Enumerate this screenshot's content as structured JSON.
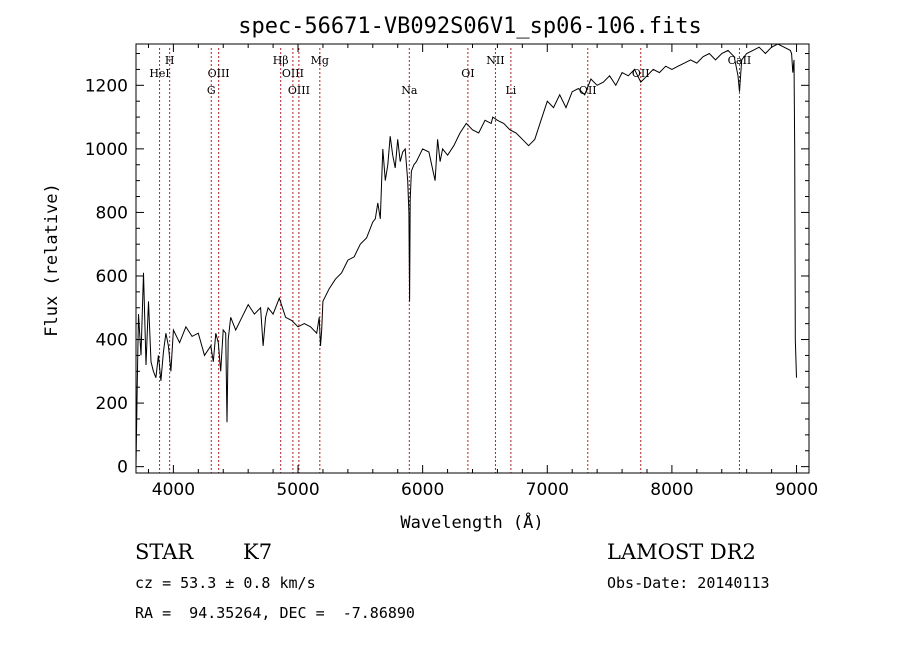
{
  "chart_data": {
    "type": "line",
    "title": "spec-56671-VB092S06V1_sp06-106.fits",
    "xlabel": "Wavelength (Å)",
    "ylabel": "Flux (relative)",
    "xlim": [
      3700,
      9100
    ],
    "ylim": [
      -20,
      1330
    ],
    "xticks": [
      4000,
      5000,
      6000,
      7000,
      8000,
      9000
    ],
    "xtick_labels": [
      "4000",
      "5000",
      "6000",
      "7000",
      "8000",
      "9000"
    ],
    "yticks": [
      0,
      200,
      400,
      600,
      800,
      1000,
      1200
    ],
    "ytick_labels": [
      "0",
      "200",
      "400",
      "600",
      "800",
      "1000",
      "1200"
    ],
    "grid": false,
    "series": [
      {
        "name": "",
        "color": "#000000",
        "x": [
          3700,
          3710,
          3720,
          3740,
          3760,
          3780,
          3800,
          3820,
          3840,
          3860,
          3880,
          3900,
          3920,
          3940,
          3960,
          3980,
          4000,
          4050,
          4100,
          4150,
          4200,
          4250,
          4300,
          4320,
          4340,
          4360,
          4380,
          4400,
          4420,
          4430,
          4440,
          4460,
          4500,
          4550,
          4600,
          4650,
          4700,
          4720,
          4740,
          4760,
          4800,
          4850,
          4900,
          4950,
          5000,
          5050,
          5100,
          5150,
          5170,
          5180,
          5190,
          5200,
          5250,
          5300,
          5350,
          5400,
          5450,
          5500,
          5550,
          5600,
          5620,
          5640,
          5660,
          5680,
          5700,
          5720,
          5740,
          5760,
          5780,
          5800,
          5820,
          5840,
          5860,
          5880,
          5890,
          5895,
          5900,
          5910,
          5930,
          5950,
          6000,
          6050,
          6100,
          6120,
          6140,
          6160,
          6200,
          6250,
          6300,
          6350,
          6400,
          6450,
          6500,
          6550,
          6563,
          6600,
          6650,
          6700,
          6750,
          6800,
          6850,
          6900,
          6950,
          7000,
          7050,
          7100,
          7150,
          7200,
          7250,
          7300,
          7350,
          7400,
          7450,
          7500,
          7550,
          7600,
          7650,
          7700,
          7750,
          7800,
          7850,
          7900,
          7950,
          8000,
          8050,
          8100,
          8150,
          8200,
          8250,
          8300,
          8350,
          8400,
          8450,
          8500,
          8530,
          8542,
          8560,
          8600,
          8650,
          8700,
          8750,
          8800,
          8850,
          8900,
          8950,
          8960,
          8970,
          8980,
          8985,
          8990,
          9000
        ],
        "y": [
          0,
          250,
          480,
          350,
          610,
          320,
          520,
          330,
          300,
          280,
          350,
          270,
          360,
          420,
          380,
          300,
          430,
          390,
          440,
          410,
          420,
          350,
          380,
          330,
          420,
          390,
          300,
          430,
          420,
          140,
          400,
          470,
          430,
          470,
          510,
          480,
          500,
          380,
          470,
          500,
          480,
          530,
          470,
          460,
          440,
          450,
          440,
          420,
          470,
          380,
          430,
          520,
          560,
          590,
          610,
          650,
          660,
          700,
          720,
          770,
          780,
          830,
          780,
          1000,
          900,
          950,
          1040,
          980,
          940,
          1030,
          960,
          990,
          1000,
          900,
          800,
          520,
          840,
          930,
          950,
          960,
          1000,
          990,
          900,
          1030,
          960,
          1000,
          980,
          1010,
          1050,
          1080,
          1060,
          1050,
          1090,
          1080,
          1100,
          1090,
          1080,
          1060,
          1050,
          1030,
          1010,
          1030,
          1090,
          1150,
          1130,
          1170,
          1130,
          1180,
          1190,
          1170,
          1220,
          1200,
          1210,
          1230,
          1200,
          1240,
          1230,
          1250,
          1210,
          1230,
          1250,
          1240,
          1260,
          1250,
          1260,
          1270,
          1280,
          1270,
          1290,
          1300,
          1280,
          1300,
          1310,
          1290,
          1230,
          1180,
          1280,
          1300,
          1310,
          1320,
          1300,
          1320,
          1330,
          1320,
          1310,
          1300,
          1240,
          1280,
          1000,
          400,
          280
        ]
      }
    ],
    "line_markers": [
      {
        "label": "HeI",
        "wavelength": 3889
      },
      {
        "label": "H",
        "wavelength": 3970
      },
      {
        "label": "OIII",
        "wavelength": 4363
      },
      {
        "label": "G",
        "wavelength": 4304
      },
      {
        "label": "Hβ",
        "wavelength": 4861
      },
      {
        "label": "OIII",
        "wavelength": 4959
      },
      {
        "label": "OIII",
        "wavelength": 5007
      },
      {
        "label": "Mg",
        "wavelength": 5175
      },
      {
        "label": "Na",
        "wavelength": 5893
      },
      {
        "label": "OI",
        "wavelength": 6363
      },
      {
        "label": "NII",
        "wavelength": 6584
      },
      {
        "label": "Li",
        "wavelength": 6708
      },
      {
        "label": "OII",
        "wavelength": 7325
      },
      {
        "label": "OII",
        "wavelength": 7750
      },
      {
        "label": "CaII",
        "wavelength": 8542
      }
    ]
  },
  "info": {
    "object_class": "STAR",
    "subclass": "K7",
    "survey": "LAMOST DR2",
    "cz_line": "cz = 53.3 ± 0.8 km/s",
    "obs_date": "Obs-Date: 20140113",
    "coords": "RA =  94.35264, DEC =  -7.86890"
  },
  "colors": {
    "spectrum": "#000000",
    "marker_lines": "#b22222",
    "axes": "#000000"
  }
}
